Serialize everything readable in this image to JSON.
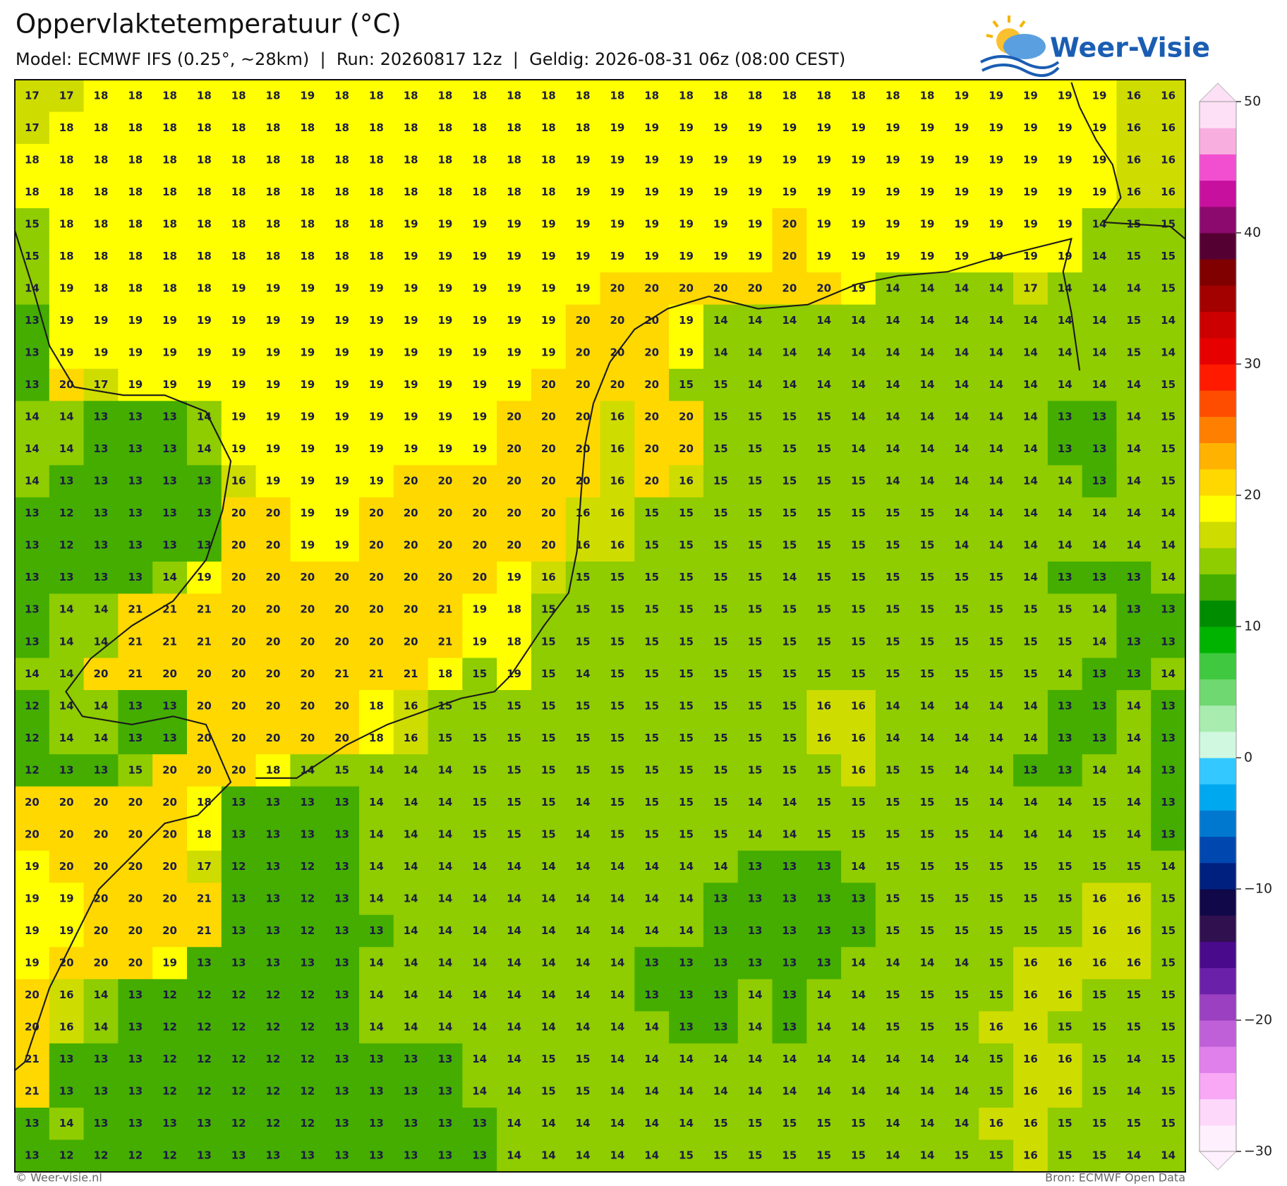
{
  "header": {
    "title": "Oppervlaktetemperatuur (°C)",
    "subtitle": "Model: ECMWF IFS (0.25°, ~28km)  |  Run: 20260817 12z  |  Geldig: 2026-08-31 06z (08:00 CEST)",
    "logo": "Weer-Visie"
  },
  "grid": {
    "rows": [
      [
        17,
        17,
        18,
        18,
        18,
        18,
        18,
        18,
        19,
        18,
        18,
        18,
        18,
        18,
        18,
        18,
        18,
        18,
        18,
        18,
        18,
        18,
        18,
        18,
        18,
        18,
        18,
        19,
        19,
        19,
        19,
        19,
        16,
        16
      ],
      [
        17,
        18,
        18,
        18,
        18,
        18,
        18,
        18,
        18,
        18,
        18,
        18,
        18,
        18,
        18,
        18,
        18,
        19,
        19,
        19,
        19,
        19,
        19,
        19,
        19,
        19,
        19,
        19,
        19,
        19,
        19,
        19,
        16,
        16
      ],
      [
        18,
        18,
        18,
        18,
        18,
        18,
        18,
        18,
        18,
        18,
        18,
        18,
        18,
        18,
        18,
        18,
        19,
        19,
        19,
        19,
        19,
        19,
        19,
        19,
        19,
        19,
        19,
        19,
        19,
        19,
        19,
        19,
        16,
        16
      ],
      [
        18,
        18,
        18,
        18,
        18,
        18,
        18,
        18,
        18,
        18,
        18,
        18,
        18,
        18,
        18,
        18,
        19,
        19,
        19,
        19,
        19,
        19,
        19,
        19,
        19,
        19,
        19,
        19,
        19,
        19,
        19,
        19,
        16,
        16
      ],
      [
        15,
        18,
        18,
        18,
        18,
        18,
        18,
        18,
        18,
        18,
        18,
        19,
        19,
        19,
        19,
        19,
        19,
        19,
        19,
        19,
        19,
        19,
        20,
        19,
        19,
        19,
        19,
        19,
        19,
        19,
        19,
        14,
        15,
        15
      ],
      [
        15,
        18,
        18,
        18,
        18,
        18,
        18,
        18,
        18,
        18,
        18,
        19,
        19,
        19,
        19,
        19,
        19,
        19,
        19,
        19,
        19,
        19,
        20,
        19,
        19,
        19,
        19,
        19,
        19,
        19,
        19,
        14,
        15,
        15
      ],
      [
        14,
        19,
        18,
        18,
        18,
        18,
        19,
        19,
        19,
        19,
        19,
        19,
        19,
        19,
        19,
        19,
        19,
        20,
        20,
        20,
        20,
        20,
        20,
        20,
        19,
        14,
        14,
        14,
        14,
        17,
        14,
        14,
        14,
        15
      ],
      [
        13,
        19,
        19,
        19,
        19,
        19,
        19,
        19,
        19,
        19,
        19,
        19,
        19,
        19,
        19,
        19,
        20,
        20,
        20,
        19,
        14,
        14,
        14,
        14,
        14,
        14,
        14,
        14,
        14,
        14,
        14,
        14,
        15,
        14
      ],
      [
        13,
        19,
        19,
        19,
        19,
        19,
        19,
        19,
        19,
        19,
        19,
        19,
        19,
        19,
        19,
        19,
        20,
        20,
        20,
        19,
        14,
        14,
        14,
        14,
        14,
        14,
        14,
        14,
        14,
        14,
        14,
        14,
        15,
        14
      ],
      [
        13,
        20,
        17,
        19,
        19,
        19,
        19,
        19,
        19,
        19,
        19,
        19,
        19,
        19,
        19,
        20,
        20,
        20,
        20,
        15,
        15,
        14,
        14,
        14,
        14,
        14,
        14,
        14,
        14,
        14,
        14,
        14,
        14,
        15
      ],
      [
        14,
        14,
        13,
        13,
        13,
        14,
        19,
        19,
        19,
        19,
        19,
        19,
        19,
        19,
        20,
        20,
        20,
        16,
        20,
        20,
        15,
        15,
        15,
        15,
        14,
        14,
        14,
        14,
        14,
        14,
        13,
        13,
        14,
        15
      ],
      [
        14,
        14,
        13,
        13,
        13,
        14,
        19,
        19,
        19,
        19,
        19,
        19,
        19,
        19,
        20,
        20,
        20,
        16,
        20,
        20,
        15,
        15,
        15,
        15,
        14,
        14,
        14,
        14,
        14,
        14,
        13,
        13,
        14,
        15
      ],
      [
        14,
        13,
        13,
        13,
        13,
        13,
        16,
        19,
        19,
        19,
        19,
        20,
        20,
        20,
        20,
        20,
        20,
        16,
        20,
        16,
        15,
        15,
        15,
        15,
        15,
        14,
        14,
        14,
        14,
        14,
        14,
        13,
        14,
        15
      ],
      [
        13,
        12,
        13,
        13,
        13,
        13,
        20,
        20,
        19,
        19,
        20,
        20,
        20,
        20,
        20,
        20,
        16,
        16,
        15,
        15,
        15,
        15,
        15,
        15,
        15,
        15,
        15,
        14,
        14,
        14,
        14,
        14,
        14,
        14
      ],
      [
        13,
        12,
        13,
        13,
        13,
        13,
        20,
        20,
        19,
        19,
        20,
        20,
        20,
        20,
        20,
        20,
        16,
        16,
        15,
        15,
        15,
        15,
        15,
        15,
        15,
        15,
        15,
        14,
        14,
        14,
        14,
        14,
        14,
        14
      ],
      [
        13,
        13,
        13,
        13,
        14,
        19,
        20,
        20,
        20,
        20,
        20,
        20,
        20,
        20,
        19,
        16,
        15,
        15,
        15,
        15,
        15,
        15,
        14,
        15,
        15,
        15,
        15,
        15,
        15,
        14,
        13,
        13,
        13,
        14
      ],
      [
        13,
        14,
        14,
        21,
        21,
        21,
        20,
        20,
        20,
        20,
        20,
        20,
        21,
        19,
        18,
        15,
        15,
        15,
        15,
        15,
        15,
        15,
        15,
        15,
        15,
        15,
        15,
        15,
        15,
        15,
        15,
        14,
        13,
        13
      ],
      [
        13,
        14,
        14,
        21,
        21,
        21,
        20,
        20,
        20,
        20,
        20,
        20,
        21,
        19,
        18,
        15,
        15,
        15,
        15,
        15,
        15,
        15,
        15,
        15,
        15,
        15,
        15,
        15,
        15,
        15,
        15,
        14,
        13,
        13
      ],
      [
        14,
        14,
        20,
        21,
        20,
        20,
        20,
        20,
        20,
        21,
        21,
        21,
        18,
        15,
        19,
        15,
        14,
        15,
        15,
        15,
        15,
        15,
        15,
        15,
        15,
        15,
        15,
        15,
        15,
        15,
        14,
        13,
        13,
        14
      ],
      [
        12,
        14,
        14,
        13,
        13,
        20,
        20,
        20,
        20,
        20,
        18,
        16,
        15,
        15,
        15,
        15,
        15,
        15,
        15,
        15,
        15,
        15,
        15,
        16,
        16,
        14,
        14,
        14,
        14,
        14,
        13,
        13,
        14,
        13
      ],
      [
        12,
        14,
        14,
        13,
        13,
        20,
        20,
        20,
        20,
        20,
        18,
        16,
        15,
        15,
        15,
        15,
        15,
        15,
        15,
        15,
        15,
        15,
        15,
        16,
        16,
        14,
        14,
        14,
        14,
        14,
        13,
        13,
        14,
        13
      ],
      [
        12,
        13,
        13,
        15,
        20,
        20,
        20,
        18,
        14,
        15,
        14,
        14,
        14,
        15,
        15,
        15,
        15,
        15,
        15,
        15,
        15,
        15,
        15,
        15,
        16,
        15,
        15,
        14,
        14,
        13,
        13,
        14,
        14,
        13
      ],
      [
        20,
        20,
        20,
        20,
        20,
        18,
        13,
        13,
        13,
        13,
        14,
        14,
        14,
        15,
        15,
        15,
        14,
        15,
        15,
        15,
        15,
        14,
        14,
        15,
        15,
        15,
        15,
        15,
        14,
        14,
        14,
        15,
        14,
        13
      ],
      [
        20,
        20,
        20,
        20,
        20,
        18,
        13,
        13,
        13,
        13,
        14,
        14,
        14,
        15,
        15,
        15,
        14,
        15,
        15,
        15,
        15,
        14,
        14,
        15,
        15,
        15,
        15,
        15,
        14,
        14,
        14,
        15,
        14,
        13
      ],
      [
        19,
        20,
        20,
        20,
        20,
        17,
        12,
        13,
        12,
        13,
        14,
        14,
        14,
        14,
        14,
        14,
        14,
        14,
        14,
        14,
        14,
        13,
        13,
        13,
        14,
        15,
        15,
        15,
        15,
        15,
        15,
        15,
        15,
        14
      ],
      [
        19,
        19,
        20,
        20,
        20,
        21,
        13,
        13,
        12,
        13,
        14,
        14,
        14,
        14,
        14,
        14,
        14,
        14,
        14,
        14,
        13,
        13,
        13,
        13,
        13,
        15,
        15,
        15,
        15,
        15,
        15,
        16,
        16,
        15
      ],
      [
        19,
        19,
        20,
        20,
        20,
        21,
        13,
        13,
        12,
        13,
        13,
        14,
        14,
        14,
        14,
        14,
        14,
        14,
        14,
        14,
        13,
        13,
        13,
        13,
        13,
        15,
        15,
        15,
        15,
        15,
        15,
        16,
        16,
        15
      ],
      [
        19,
        20,
        20,
        20,
        19,
        13,
        13,
        13,
        13,
        13,
        14,
        14,
        14,
        14,
        14,
        14,
        14,
        14,
        13,
        13,
        13,
        13,
        13,
        13,
        14,
        14,
        14,
        14,
        15,
        16,
        16,
        16,
        16,
        15
      ],
      [
        20,
        16,
        14,
        13,
        12,
        12,
        12,
        12,
        12,
        13,
        14,
        14,
        14,
        14,
        14,
        14,
        14,
        14,
        13,
        13,
        13,
        14,
        13,
        14,
        14,
        15,
        15,
        15,
        15,
        16,
        16,
        15,
        15,
        15
      ],
      [
        20,
        16,
        14,
        13,
        12,
        12,
        12,
        12,
        12,
        13,
        14,
        14,
        14,
        14,
        14,
        14,
        14,
        14,
        14,
        13,
        13,
        14,
        13,
        14,
        14,
        15,
        15,
        15,
        16,
        16,
        15,
        15,
        15,
        15
      ],
      [
        21,
        13,
        13,
        13,
        12,
        12,
        12,
        12,
        12,
        13,
        13,
        13,
        13,
        14,
        14,
        15,
        15,
        14,
        14,
        14,
        14,
        14,
        14,
        14,
        14,
        14,
        14,
        14,
        15,
        16,
        16,
        15,
        14,
        15
      ],
      [
        21,
        13,
        13,
        13,
        12,
        12,
        12,
        12,
        12,
        13,
        13,
        13,
        13,
        14,
        14,
        15,
        15,
        14,
        14,
        14,
        14,
        14,
        14,
        14,
        14,
        14,
        14,
        14,
        15,
        16,
        16,
        15,
        14,
        15
      ],
      [
        13,
        14,
        13,
        13,
        13,
        13,
        12,
        12,
        12,
        13,
        13,
        13,
        13,
        13,
        14,
        14,
        14,
        14,
        14,
        14,
        15,
        15,
        15,
        15,
        15,
        14,
        14,
        14,
        16,
        16,
        15,
        15,
        15,
        15
      ],
      [
        13,
        12,
        12,
        12,
        12,
        13,
        13,
        13,
        13,
        13,
        13,
        13,
        13,
        13,
        14,
        14,
        14,
        14,
        14,
        15,
        15,
        15,
        15,
        15,
        15,
        14,
        14,
        15,
        15,
        16,
        15,
        15,
        14,
        14
      ]
    ]
  },
  "colorbar": {
    "range": [
      -30,
      50
    ],
    "colors": [
      "#fff0fd",
      "#fdd8fb",
      "#f8a8f5",
      "#e080ea",
      "#c060d8",
      "#9a40c0",
      "#6a20a8",
      "#4a0a8c",
      "#30104f",
      "#100848",
      "#002080",
      "#0048b0",
      "#0078d0",
      "#00a8f0",
      "#33c8ff",
      "#d0f8e0",
      "#a8ecb0",
      "#70d870",
      "#40c840",
      "#00b300",
      "#008c00",
      "#44ad00",
      "#8fcc00",
      "#cfdc00",
      "#ffff00",
      "#ffd800",
      "#ffb300",
      "#ff8000",
      "#ff4d00",
      "#ff1a00",
      "#e60000",
      "#cc0000",
      "#a30000",
      "#800000",
      "#550033",
      "#8c0a6e",
      "#c8109f",
      "#f24fd0",
      "#f9aee0",
      "#fde0f5"
    ],
    "ticks": [
      50,
      40,
      30,
      20,
      10,
      0,
      {
        "value": -10,
        "label": "−10"
      },
      {
        "value": -20,
        "label": "−20"
      },
      {
        "value": -30,
        "label": "−30"
      }
    ]
  },
  "footer": {
    "left": "© Weer-visie.nl",
    "right": "Bron: ECMWF Open Data"
  }
}
